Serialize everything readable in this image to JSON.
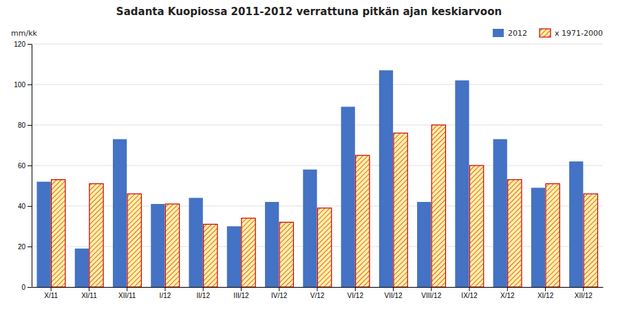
{
  "chart_data": {
    "type": "bar",
    "title": "Sadanta Kuopiossa 2011-2012 verrattuna pitkän ajan keskiarvoon",
    "ylabel": "mm/kk",
    "categories": [
      "X/11",
      "XI/11",
      "XII/11",
      "I/12",
      "II/12",
      "III/12",
      "IV/12",
      "V/12",
      "VI/12",
      "VII/12",
      "VIII/12",
      "IX/12",
      "X/12",
      "XI/12",
      "XII/12"
    ],
    "series": [
      {
        "name": "2012",
        "color": "#4472C4",
        "values": [
          52,
          19,
          73,
          41,
          44,
          30,
          42,
          58,
          89,
          107,
          42,
          102,
          73,
          49,
          62
        ]
      },
      {
        "name": "x 1971-2000",
        "color": "#CC0000",
        "values": [
          53,
          51,
          46,
          41,
          31,
          34,
          32,
          39,
          65,
          76,
          80,
          60,
          53,
          51,
          46
        ]
      }
    ],
    "ylim": [
      0,
      120
    ],
    "yticks": [
      0,
      20,
      40,
      60,
      80,
      100,
      120
    ],
    "grid": true,
    "legend": "upper right"
  }
}
